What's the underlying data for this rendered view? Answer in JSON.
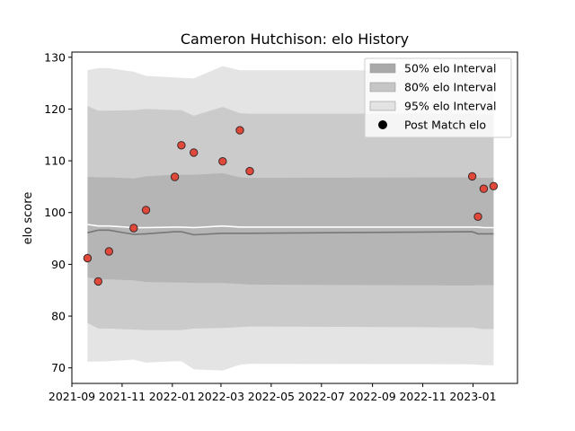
{
  "chart_data": {
    "type": "scatter",
    "title": "Cameron Hutchison: elo History",
    "xlabel": "",
    "ylabel": "elo score",
    "ylim": [
      67,
      131
    ],
    "xlim": [
      "2021-09-01",
      "2023-02-24"
    ],
    "grid": false,
    "legend_position": "top-right",
    "y_ticks": [
      70,
      80,
      90,
      100,
      110,
      120,
      130
    ],
    "x_ticks": [
      {
        "date": "2021-09-01",
        "label": "2021-09"
      },
      {
        "date": "2021-11-01",
        "label": "2021-11"
      },
      {
        "date": "2022-01-01",
        "label": "2022-01"
      },
      {
        "date": "2022-03-01",
        "label": "2022-03"
      },
      {
        "date": "2022-05-01",
        "label": "2022-05"
      },
      {
        "date": "2022-07-01",
        "label": "2022-07"
      },
      {
        "date": "2022-09-01",
        "label": "2022-09"
      },
      {
        "date": "2022-11-01",
        "label": "2022-11"
      },
      {
        "date": "2023-01-01",
        "label": "2023-01"
      }
    ],
    "legend": [
      {
        "label": "50% elo Interval",
        "kind": "patch",
        "color": "#a9a9a9"
      },
      {
        "label": "80% elo Interval",
        "kind": "patch",
        "color": "#c6c6c6"
      },
      {
        "label": "95% elo Interval",
        "kind": "patch",
        "color": "#e3e3e3"
      },
      {
        "label": "Post Match elo",
        "kind": "marker",
        "color": "#000000"
      }
    ],
    "bands": {
      "dates": [
        "2021-09-20",
        "2021-10-03",
        "2021-10-16",
        "2021-11-15",
        "2021-11-30",
        "2022-01-04",
        "2022-01-12",
        "2022-01-27",
        "2022-03-03",
        "2022-03-24",
        "2022-04-05",
        "2022-12-31",
        "2023-01-07",
        "2023-01-14",
        "2023-01-26"
      ],
      "ci95_high": [
        127.5,
        127.9,
        127.9,
        127.2,
        126.4,
        126.1,
        126.0,
        125.9,
        128.3,
        127.5,
        127.5,
        127.5,
        127.5,
        127.5,
        127.5
      ],
      "ci95_low": [
        71.2,
        71.2,
        71.3,
        71.6,
        71.0,
        71.3,
        71.3,
        69.7,
        69.5,
        70.6,
        70.8,
        70.7,
        70.6,
        70.5,
        70.5
      ],
      "ci80_high": [
        120.6,
        119.7,
        119.7,
        119.8,
        120.0,
        119.8,
        119.8,
        118.7,
        120.4,
        119.2,
        119.1,
        119.1,
        119.0,
        119.0,
        119.0
      ],
      "ci80_low": [
        78.7,
        77.6,
        77.6,
        77.4,
        77.3,
        77.3,
        77.3,
        77.6,
        77.7,
        77.9,
        78.0,
        77.8,
        77.6,
        77.5,
        77.5
      ],
      "ci50_high": [
        106.9,
        106.8,
        106.8,
        106.6,
        107.0,
        107.3,
        107.3,
        107.3,
        107.6,
        106.8,
        106.7,
        106.8,
        106.7,
        106.7,
        106.7
      ],
      "ci50_low": [
        87.5,
        87.1,
        87.1,
        86.9,
        86.6,
        86.5,
        86.5,
        86.4,
        86.4,
        86.2,
        86.1,
        85.9,
        86.0,
        86.0,
        86.0
      ],
      "median": [
        96.1,
        96.6,
        96.6,
        95.8,
        95.9,
        96.3,
        96.3,
        95.7,
        96.0,
        96.0,
        96.0,
        96.3,
        95.9,
        95.9,
        95.9
      ],
      "mean": [
        97.7,
        97.4,
        97.4,
        97.1,
        97.1,
        97.2,
        97.2,
        97.1,
        97.4,
        97.2,
        97.2,
        97.2,
        97.2,
        97.1,
        97.1
      ],
      "median_color": "#777777",
      "mean_color": "#ffffff"
    },
    "series": [
      {
        "name": "Post Match elo",
        "color": "#e0483a",
        "edge_color": "#3a2a2a",
        "points": [
          {
            "x": "2021-09-20",
            "y": 91.2
          },
          {
            "x": "2021-10-03",
            "y": 86.7
          },
          {
            "x": "2021-10-16",
            "y": 92.5
          },
          {
            "x": "2021-11-15",
            "y": 97.0
          },
          {
            "x": "2021-11-30",
            "y": 100.5
          },
          {
            "x": "2022-01-04",
            "y": 106.9
          },
          {
            "x": "2022-01-12",
            "y": 113.0
          },
          {
            "x": "2022-01-27",
            "y": 111.6
          },
          {
            "x": "2022-03-03",
            "y": 109.9
          },
          {
            "x": "2022-03-24",
            "y": 115.9
          },
          {
            "x": "2022-04-05",
            "y": 108.0
          },
          {
            "x": "2022-12-31",
            "y": 107.0
          },
          {
            "x": "2023-01-07",
            "y": 99.2
          },
          {
            "x": "2023-01-14",
            "y": 104.6
          },
          {
            "x": "2023-01-26",
            "y": 105.1
          }
        ]
      }
    ]
  }
}
